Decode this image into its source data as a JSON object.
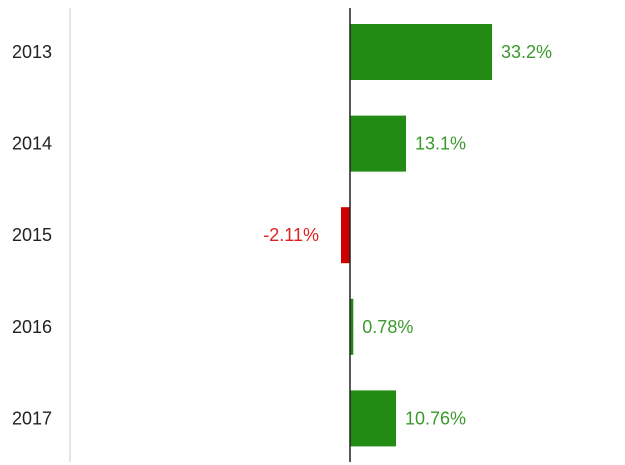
{
  "chart_data": {
    "type": "bar",
    "orientation": "horizontal",
    "categories": [
      "2013",
      "2014",
      "2015",
      "2016",
      "2017"
    ],
    "values": [
      33.2,
      13.1,
      -2.11,
      0.78,
      10.76
    ],
    "value_labels": [
      "33.2%",
      "13.1%",
      "-2.11%",
      "0.78%",
      "10.76%"
    ],
    "title": "",
    "xlabel": "",
    "ylabel": "",
    "xlim": [
      -33.2,
      36.6
    ],
    "grid": false,
    "legend": "none",
    "colors": {
      "positive": "#228b14",
      "negative": "#cc0000",
      "positive_label": "#3a9a2c",
      "negative_label": "#e02020",
      "axis": "#222222",
      "left_axis": "#cccccc"
    }
  }
}
